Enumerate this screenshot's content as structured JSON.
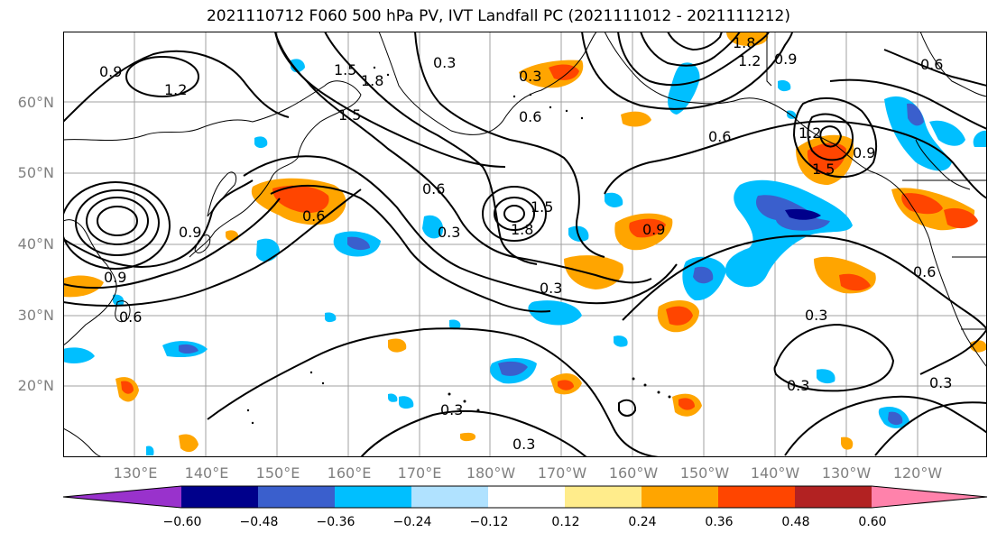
{
  "title": "2021110712 F060 500 hPa PV, IVT Landfall PC (2021111012 - 2021111212)",
  "latitudes": [
    "60°N",
    "50°N",
    "40°N",
    "30°N",
    "20°N"
  ],
  "longitudes": [
    "130°E",
    "140°E",
    "150°E",
    "160°E",
    "170°E",
    "180°W",
    "170°W",
    "160°W",
    "150°W",
    "140°W",
    "130°W",
    "120°W"
  ],
  "contour_labels": [
    "0.9",
    "1.2",
    "1.5",
    "1.8",
    "1.5",
    "0.3",
    "0.3",
    "0.6",
    "0.6",
    "1.2",
    "0.9",
    "1.8",
    "0.6",
    "0.6",
    "0.3",
    "1.8",
    "1.5",
    "0.9",
    "0.3",
    "0.3",
    "0.3",
    "0.3",
    "0.3",
    "0.3",
    "0.9",
    "0.6",
    "0.9",
    "0.6",
    "1.5",
    "0.9",
    "1.2",
    "0.6"
  ],
  "colorbar": {
    "ticks": [
      "−0.60",
      "−0.48",
      "−0.36",
      "−0.24",
      "−0.12",
      "0.12",
      "0.24",
      "0.36",
      "0.48",
      "0.60"
    ],
    "colors": [
      "#9932cc",
      "#00008b",
      "#3a5fcd",
      "#00bfff",
      "#b0e2ff",
      "#ffffff",
      "#ffec8b",
      "#ffa500",
      "#ff4500",
      "#b22222",
      "#ff82ab"
    ]
  }
}
